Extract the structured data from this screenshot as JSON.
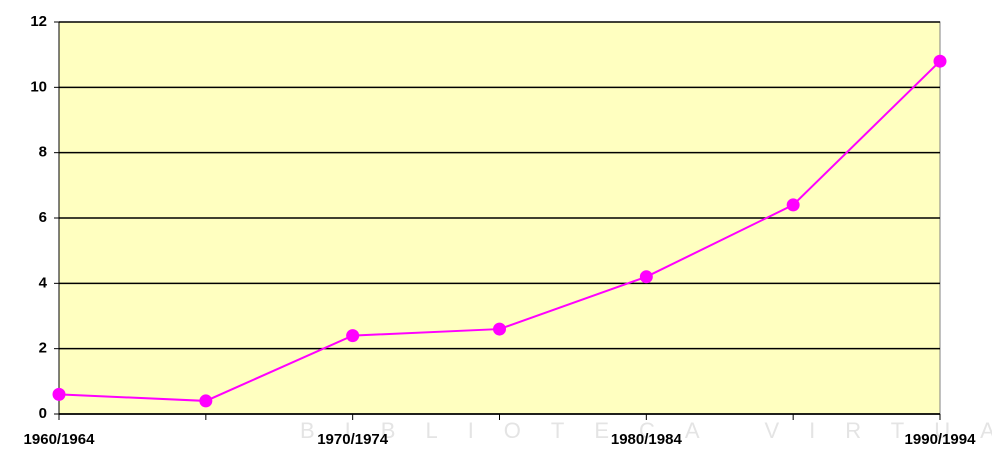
{
  "chart_data": {
    "type": "line",
    "categories": [
      "1960/1964",
      null,
      "1970/1974",
      null,
      "1980/1984",
      null,
      "1990/1994"
    ],
    "series": [
      {
        "name": null,
        "color": "#ff00ff",
        "values": [
          0.6,
          0.4,
          2.4,
          2.6,
          4.2,
          6.4,
          10.8
        ]
      }
    ],
    "ylim": [
      0,
      12
    ],
    "yticks": [
      0,
      2,
      4,
      6,
      8,
      10,
      12
    ],
    "grid": true,
    "plot_background": "#ffffc0",
    "watermark": "BIBLIOTECA VIRTUAL"
  }
}
